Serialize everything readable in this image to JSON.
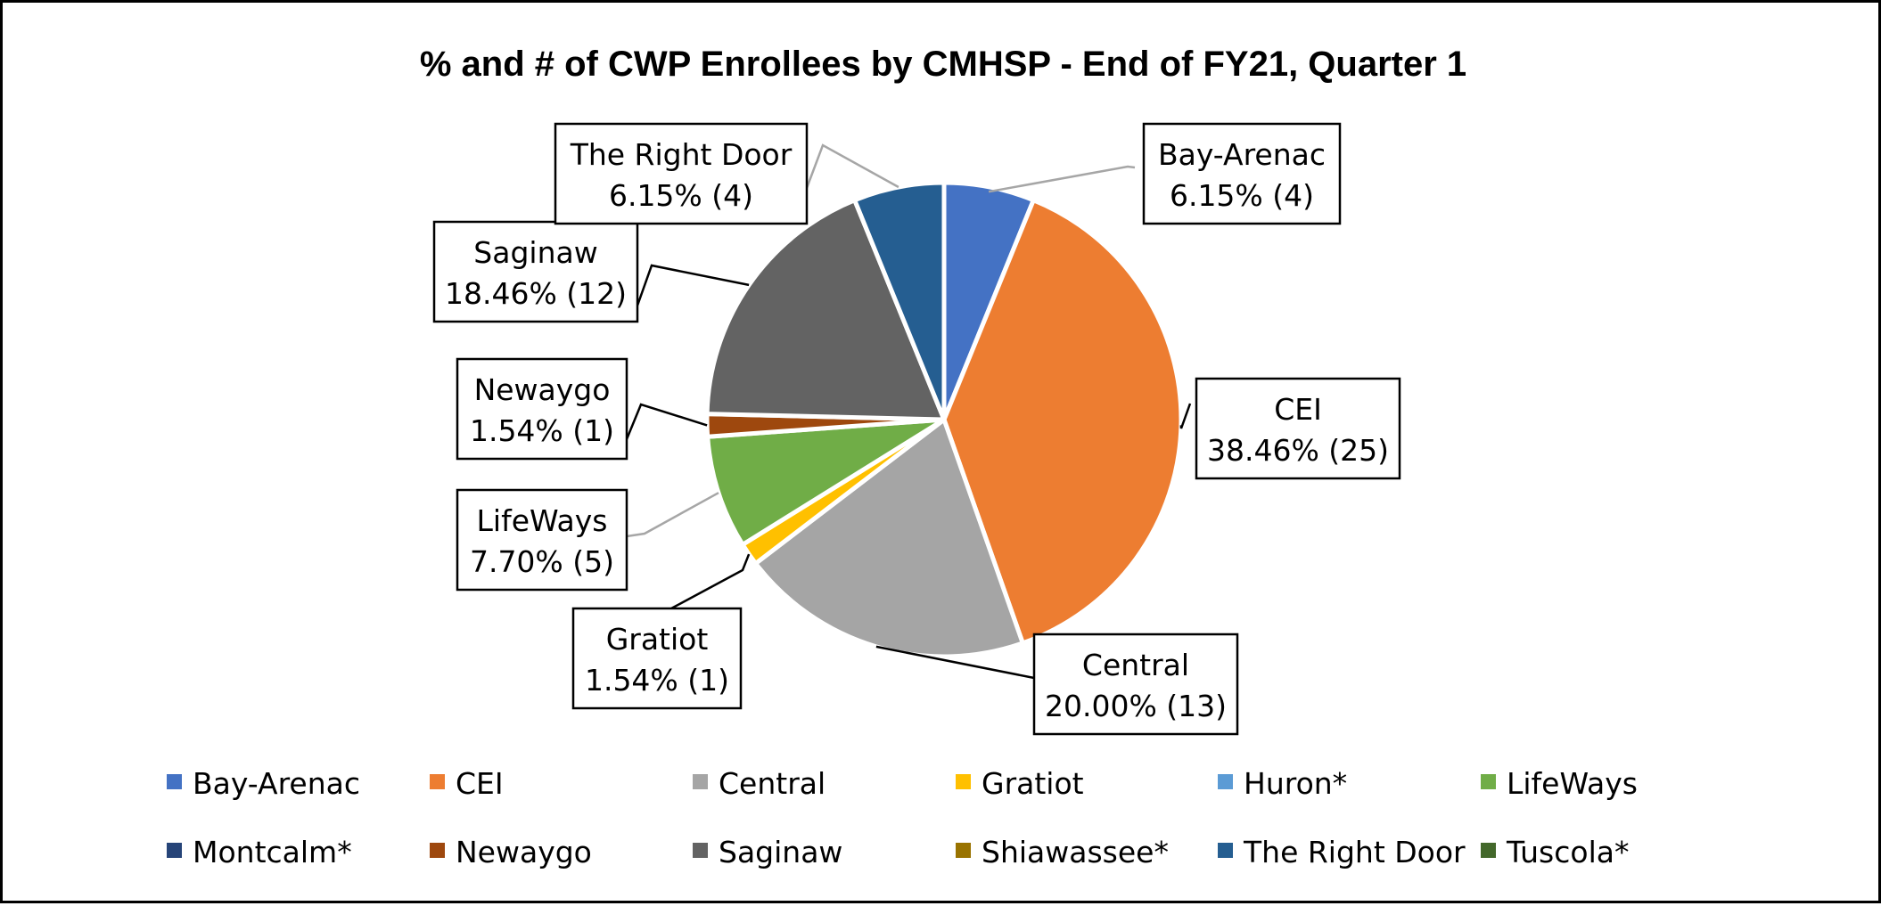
{
  "chart_data": {
    "type": "pie",
    "title": "%  and # of CWP Enrollees by CMHSP - End of FY21, Quarter 1",
    "slices": [
      {
        "name": "Bay-Arenac",
        "value": 4,
        "percent_label": "6.15% (4)",
        "color": "#4472c4"
      },
      {
        "name": "CEI",
        "value": 25,
        "percent_label": "38.46% (25)",
        "color": "#ed7d31"
      },
      {
        "name": "Central",
        "value": 13,
        "percent_label": "20.00% (13)",
        "color": "#a5a5a5"
      },
      {
        "name": "Gratiot",
        "value": 1,
        "percent_label": "1.54% (1)",
        "color": "#ffc000"
      },
      {
        "name": "Huron*",
        "value": 0,
        "percent_label": "",
        "color": "#5b9bd5"
      },
      {
        "name": "LifeWays",
        "value": 5,
        "percent_label": "7.70% (5)",
        "color": "#70ad47"
      },
      {
        "name": "Montcalm*",
        "value": 0,
        "percent_label": "",
        "color": "#264478"
      },
      {
        "name": "Newaygo",
        "value": 1,
        "percent_label": "1.54% (1)",
        "color": "#9e480e"
      },
      {
        "name": "Saginaw",
        "value": 12,
        "percent_label": "18.46% (12)",
        "color": "#636363"
      },
      {
        "name": "Shiawassee*",
        "value": 0,
        "percent_label": "",
        "color": "#997300"
      },
      {
        "name": "The Right Door",
        "value": 4,
        "percent_label": "6.15% (4)",
        "color": "#255e91"
      },
      {
        "name": "Tuscola*",
        "value": 0,
        "percent_label": "",
        "color": "#43682b"
      }
    ],
    "start_angle": "12 o'clock",
    "direction": "clockwise",
    "legend_position": "bottom"
  }
}
